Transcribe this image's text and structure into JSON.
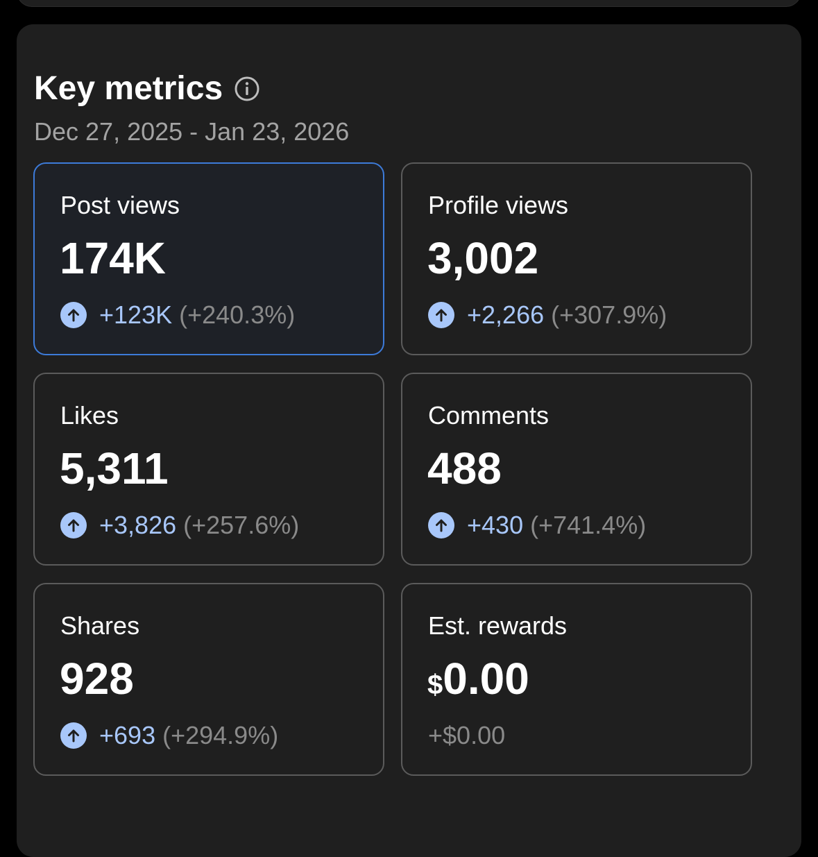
{
  "header": {
    "title": "Key metrics",
    "date_range": "Dec 27, 2025 - Jan 23, 2026"
  },
  "metrics": [
    {
      "label": "Post views",
      "value": "174K",
      "delta": "+123K",
      "pct": "(+240.3%)",
      "trend": "up",
      "selected": true
    },
    {
      "label": "Profile views",
      "value": "3,002",
      "delta": "+2,266",
      "pct": "(+307.9%)",
      "trend": "up"
    },
    {
      "label": "Likes",
      "value": "5,311",
      "delta": "+3,826",
      "pct": "(+257.6%)",
      "trend": "up"
    },
    {
      "label": "Comments",
      "value": "488",
      "delta": "+430",
      "pct": "(+741.4%)",
      "trend": "up"
    },
    {
      "label": "Shares",
      "value": "928",
      "delta": "+693",
      "pct": "(+294.9%)",
      "trend": "up"
    },
    {
      "label": "Est. rewards",
      "currency": "$",
      "value": "0.00",
      "delta": "+$0.00",
      "trend": "none"
    }
  ],
  "icons": {
    "info": "info-icon",
    "trend_up": "arrow-up-circle-icon"
  },
  "colors": {
    "accent": "#a8c7fa",
    "selected_border": "#3d7bd9",
    "muted": "#8a8a8a"
  }
}
